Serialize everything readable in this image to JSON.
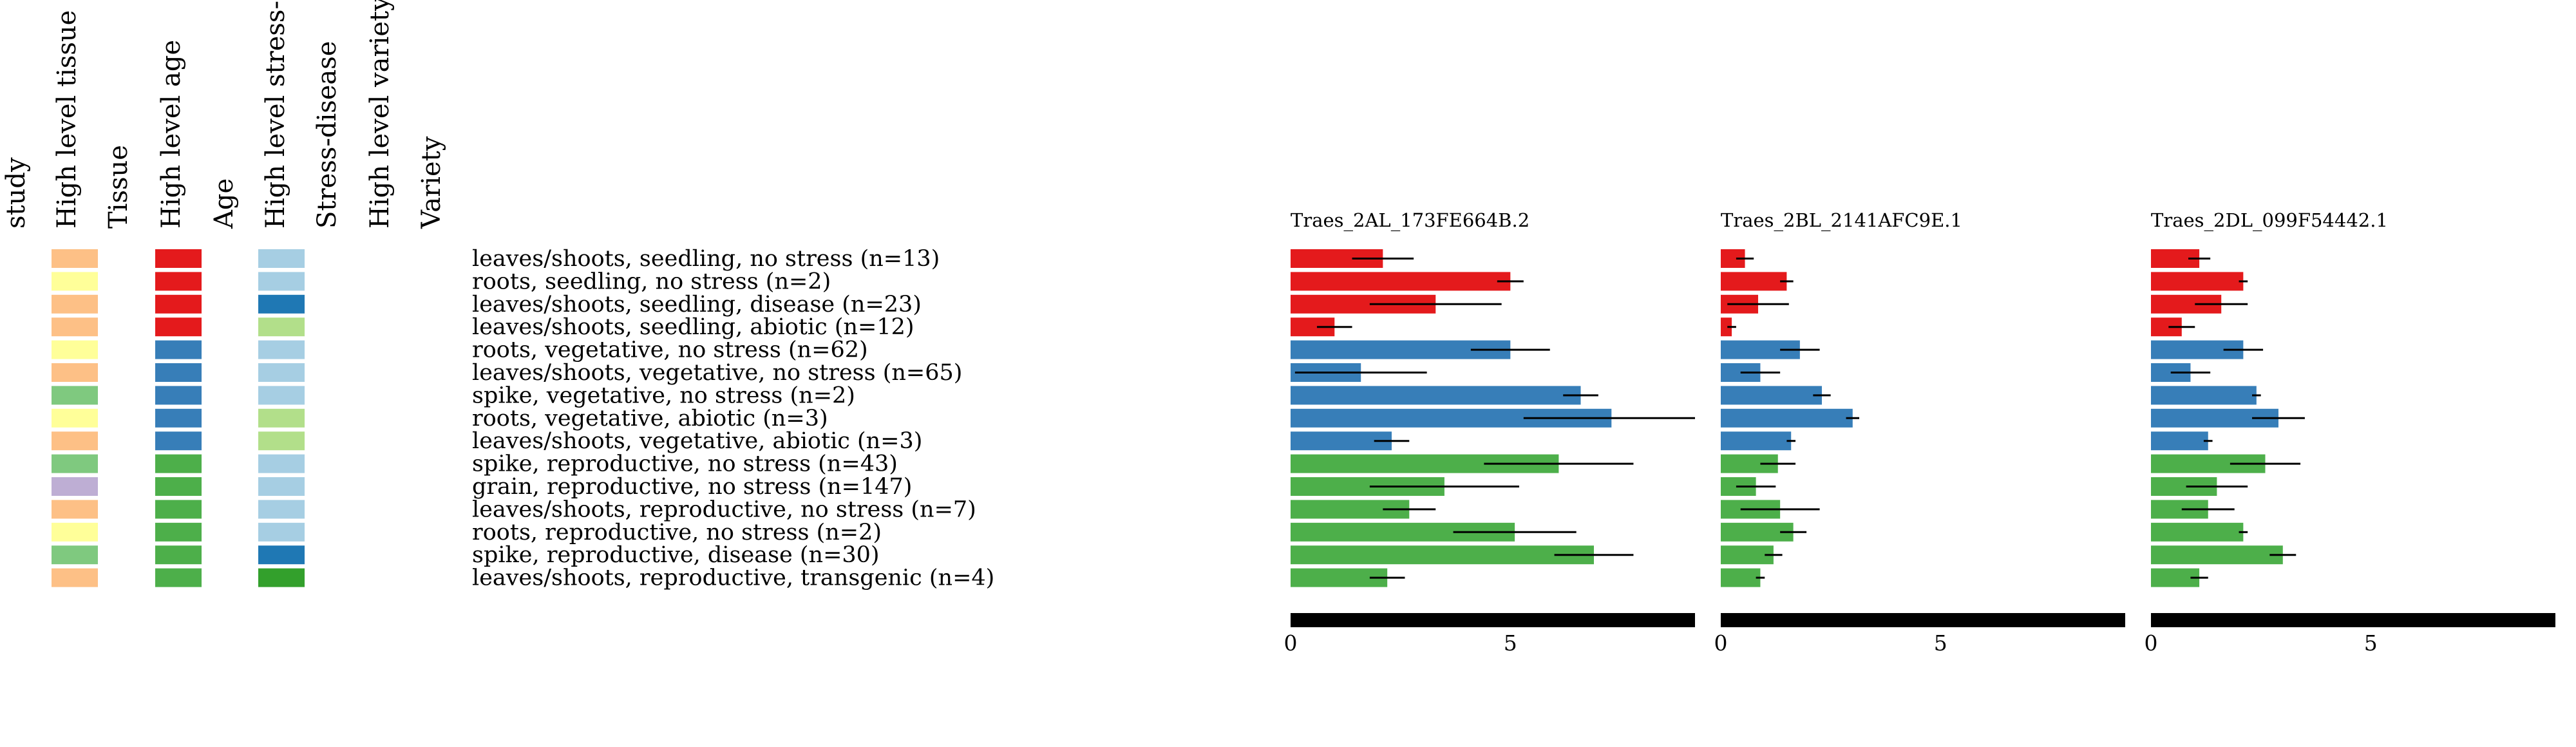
{
  "header_columns": [
    "study",
    "High level tissue",
    "Tissue",
    "High level age",
    "Age",
    "High level stress-disease",
    "Stress-disease",
    "High level variety",
    "Variety"
  ],
  "annotation_columns": [
    "High level tissue",
    "High level age",
    "High level stress-disease"
  ],
  "colors": {
    "age": {
      "seedling": "#e41a1c",
      "vegetative": "#377eb8",
      "reproductive": "#4daf4a"
    },
    "tissue": {
      "leaves/shoots": "#fdc086",
      "roots": "#ffff99",
      "spike": "#7fc97f",
      "grain": "#beaed4"
    },
    "stress": {
      "no stress": "#a6cee3",
      "disease": "#1f78b4",
      "abiotic": "#b2df8a",
      "transgenic": "#33a02c"
    },
    "scale_bar": "#000000",
    "error_bar": "#000000"
  },
  "rows": [
    {
      "label": "leaves/shoots, seedling, no stress (n=13)",
      "tissue": "leaves/shoots",
      "age": "seedling",
      "stress": "no stress"
    },
    {
      "label": "roots, seedling, no stress (n=2)",
      "tissue": "roots",
      "age": "seedling",
      "stress": "no stress"
    },
    {
      "label": "leaves/shoots, seedling, disease (n=23)",
      "tissue": "leaves/shoots",
      "age": "seedling",
      "stress": "disease"
    },
    {
      "label": "leaves/shoots, seedling, abiotic (n=12)",
      "tissue": "leaves/shoots",
      "age": "seedling",
      "stress": "abiotic"
    },
    {
      "label": "roots, vegetative, no stress (n=62)",
      "tissue": "roots",
      "age": "vegetative",
      "stress": "no stress"
    },
    {
      "label": "leaves/shoots, vegetative, no stress (n=65)",
      "tissue": "leaves/shoots",
      "age": "vegetative",
      "stress": "no stress"
    },
    {
      "label": "spike, vegetative, no stress (n=2)",
      "tissue": "spike",
      "age": "vegetative",
      "stress": "no stress"
    },
    {
      "label": "roots, vegetative, abiotic (n=3)",
      "tissue": "roots",
      "age": "vegetative",
      "stress": "abiotic"
    },
    {
      "label": "leaves/shoots, vegetative, abiotic (n=3)",
      "tissue": "leaves/shoots",
      "age": "vegetative",
      "stress": "abiotic"
    },
    {
      "label": "spike, reproductive, no stress (n=43)",
      "tissue": "spike",
      "age": "reproductive",
      "stress": "no stress"
    },
    {
      "label": "grain, reproductive, no stress (n=147)",
      "tissue": "grain",
      "age": "reproductive",
      "stress": "no stress"
    },
    {
      "label": "leaves/shoots, reproductive, no stress (n=7)",
      "tissue": "leaves/shoots",
      "age": "reproductive",
      "stress": "no stress"
    },
    {
      "label": "roots, reproductive, no stress (n=2)",
      "tissue": "roots",
      "age": "reproductive",
      "stress": "no stress"
    },
    {
      "label": "spike, reproductive, disease (n=30)",
      "tissue": "spike",
      "age": "reproductive",
      "stress": "disease"
    },
    {
      "label": "leaves/shoots, reproductive, transgenic (n=4)",
      "tissue": "leaves/shoots",
      "age": "reproductive",
      "stress": "transgenic"
    }
  ],
  "chart_data": [
    {
      "type": "bar",
      "orientation": "horizontal",
      "title": "Traes_2AL_173FE664B.2",
      "xlim": [
        0,
        9.2
      ],
      "xticks": [
        0,
        5
      ],
      "values": [
        2.1,
        5.0,
        3.3,
        1.0,
        5.0,
        1.6,
        6.6,
        7.3,
        2.3,
        6.1,
        3.5,
        2.7,
        5.1,
        6.9,
        2.2
      ],
      "errors": [
        0.7,
        0.3,
        1.5,
        0.4,
        0.9,
        1.5,
        0.4,
        2.0,
        0.4,
        1.7,
        1.7,
        0.6,
        1.4,
        0.9,
        0.4
      ]
    },
    {
      "type": "bar",
      "orientation": "horizontal",
      "title": "Traes_2BL_2141AFC9E.1",
      "xlim": [
        0,
        9.2
      ],
      "xticks": [
        0,
        5
      ],
      "values": [
        0.55,
        1.5,
        0.85,
        0.25,
        1.8,
        0.9,
        2.3,
        3.0,
        1.6,
        1.3,
        0.8,
        1.35,
        1.65,
        1.2,
        0.9
      ],
      "errors": [
        0.2,
        0.15,
        0.7,
        0.1,
        0.45,
        0.45,
        0.2,
        0.15,
        0.1,
        0.4,
        0.45,
        0.9,
        0.3,
        0.2,
        0.1
      ]
    },
    {
      "type": "bar",
      "orientation": "horizontal",
      "title": "Traes_2DL_099F54442.1",
      "xlim": [
        0,
        9.2
      ],
      "xticks": [
        0,
        5
      ],
      "values": [
        1.1,
        2.1,
        1.6,
        0.7,
        2.1,
        0.9,
        2.4,
        2.9,
        1.3,
        2.6,
        1.5,
        1.3,
        2.1,
        3.0,
        1.1
      ],
      "errors": [
        0.25,
        0.1,
        0.6,
        0.3,
        0.45,
        0.45,
        0.1,
        0.6,
        0.1,
        0.8,
        0.7,
        0.6,
        0.1,
        0.3,
        0.2
      ]
    }
  ]
}
